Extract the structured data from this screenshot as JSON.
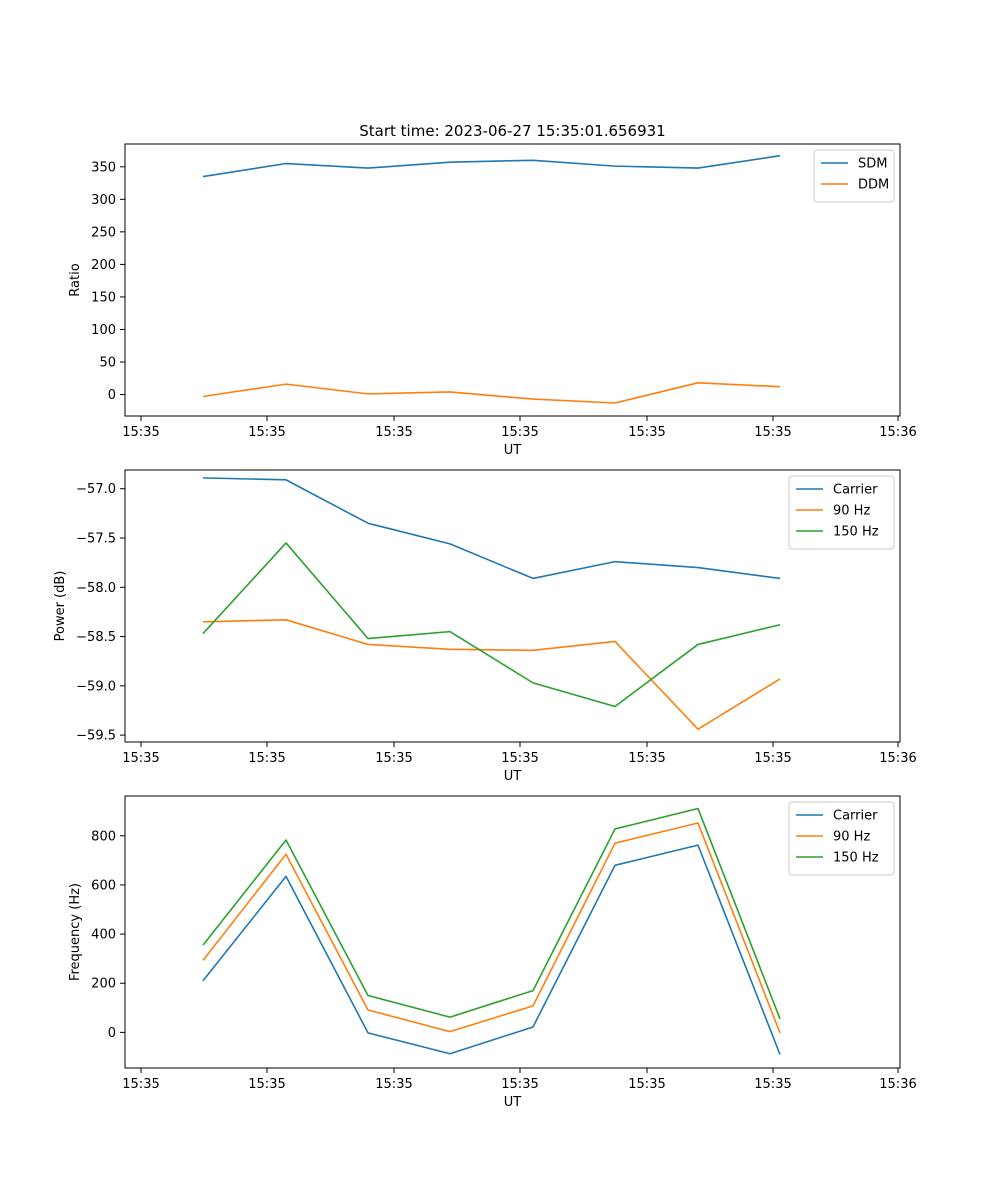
{
  "figure_title": "Start time: 2023-06-27 15:35:01.656931",
  "colors": {
    "blue": "#1f77b4",
    "orange": "#ff7f0e",
    "green": "#2ca02c"
  },
  "chart_data": [
    {
      "type": "line",
      "xlabel": "UT",
      "ylabel": "Ratio",
      "x_tick_labels": [
        "15:35",
        "15:35",
        "15:35",
        "15:35",
        "15:35",
        "15:35",
        "15:36"
      ],
      "y_ticks": [
        0,
        50,
        100,
        150,
        200,
        250,
        300,
        350
      ],
      "ylim": [
        -33,
        385
      ],
      "legend": "upper right",
      "series": [
        {
          "name": "SDM",
          "color": "#1f77b4",
          "values": [
            335,
            355,
            348,
            357,
            360,
            351,
            348,
            367
          ]
        },
        {
          "name": "DDM",
          "color": "#ff7f0e",
          "values": [
            -3,
            16,
            1,
            4,
            -7,
            -13,
            18,
            12
          ]
        }
      ]
    },
    {
      "type": "line",
      "xlabel": "UT",
      "ylabel": "Power (dB)",
      "x_tick_labels": [
        "15:35",
        "15:35",
        "15:35",
        "15:35",
        "15:35",
        "15:35",
        "15:36"
      ],
      "y_ticks": [
        -59.5,
        -59.0,
        -58.5,
        -58.0,
        -57.5,
        -57.0
      ],
      "y_tick_labels": [
        "−59.5",
        "−59.0",
        "−58.5",
        "−58.0",
        "−57.5",
        "−57.0"
      ],
      "ylim": [
        -59.57,
        -56.81
      ],
      "legend": "upper right",
      "series": [
        {
          "name": "Carrier",
          "color": "#1f77b4",
          "values": [
            -56.89,
            -56.91,
            -57.35,
            -57.56,
            -57.91,
            -57.74,
            -57.8,
            -57.91
          ]
        },
        {
          "name": "90 Hz",
          "color": "#ff7f0e",
          "values": [
            -58.35,
            -58.33,
            -58.58,
            -58.63,
            -58.64,
            -58.55,
            -59.44,
            -58.93
          ]
        },
        {
          "name": "150 Hz",
          "color": "#2ca02c",
          "values": [
            -58.47,
            -57.55,
            -58.52,
            -58.45,
            -58.97,
            -59.21,
            -58.58,
            -58.38
          ]
        }
      ]
    },
    {
      "type": "line",
      "xlabel": "UT",
      "ylabel": "Frequency (Hz)",
      "x_tick_labels": [
        "15:35",
        "15:35",
        "15:35",
        "15:35",
        "15:35",
        "15:35",
        "15:36"
      ],
      "y_ticks": [
        0,
        200,
        400,
        600,
        800
      ],
      "ylim": [
        -145,
        962
      ],
      "legend": "upper right",
      "series": [
        {
          "name": "Carrier",
          "color": "#1f77b4",
          "values": [
            210,
            635,
            -2,
            -87,
            22,
            680,
            762,
            -90
          ]
        },
        {
          "name": "90 Hz",
          "color": "#ff7f0e",
          "values": [
            293,
            725,
            91,
            3,
            108,
            770,
            852,
            -2
          ]
        },
        {
          "name": "150 Hz",
          "color": "#2ca02c",
          "values": [
            355,
            783,
            150,
            62,
            170,
            828,
            911,
            55
          ]
        }
      ]
    }
  ]
}
